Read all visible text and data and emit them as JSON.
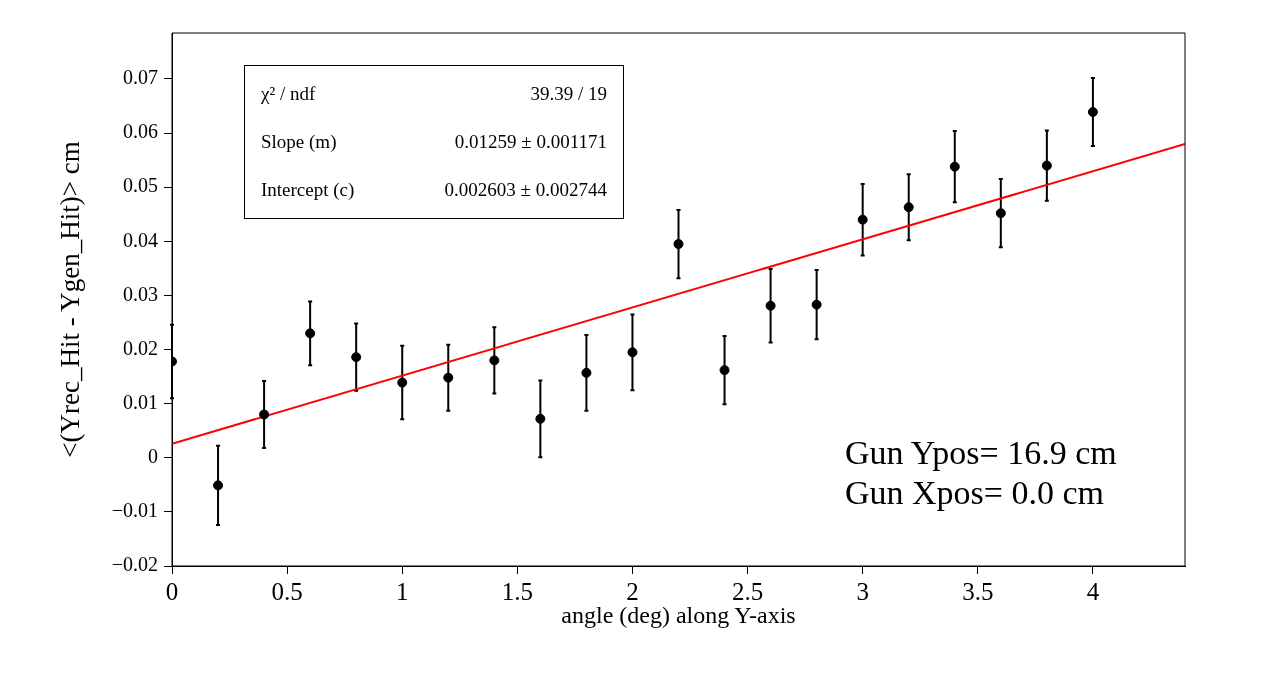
{
  "chart_data": {
    "type": "scatter",
    "xlabel": "angle (deg) along Y-axis",
    "ylabel": "<(Yrec_Hit - Ygen_Hit)> cm",
    "xlim": [
      0,
      4.4
    ],
    "xticks": [
      0,
      0.5,
      1,
      1.5,
      2,
      2.5,
      3,
      3.5,
      4
    ],
    "ylim": [
      -0.02,
      0.0785
    ],
    "yticks": [
      {
        "value": -0.02,
        "label": "−0.02"
      },
      {
        "value": -0.01,
        "label": "−0.01"
      },
      0,
      0.01,
      0.02,
      0.03,
      0.04,
      0.05,
      0.06,
      0.07
    ],
    "series": [
      {
        "marker": "circle",
        "color": "#000000",
        "x": [
          0,
          0.2,
          0.4,
          0.6,
          0.8,
          1.0,
          1.2,
          1.4,
          1.6,
          1.8,
          2.0,
          2.2,
          2.4,
          2.6,
          2.8,
          3.0,
          3.2,
          3.4,
          3.6,
          3.8,
          4.0
        ],
        "values": [
          0.0178,
          -0.0051,
          0.008,
          0.023,
          0.0186,
          0.0139,
          0.0148,
          0.018,
          0.0072,
          0.0157,
          0.0195,
          0.0395,
          0.0162,
          0.0281,
          0.0283,
          0.044,
          0.0463,
          0.0538,
          0.0452,
          0.054,
          0.0639
        ],
        "errors": [
          0.0068,
          0.0073,
          0.0062,
          0.0059,
          0.0062,
          0.0068,
          0.0061,
          0.0061,
          0.0071,
          0.007,
          0.007,
          0.0063,
          0.0063,
          0.0068,
          0.0064,
          0.0066,
          0.0061,
          0.0066,
          0.0063,
          0.0065,
          0.0063
        ]
      },
      {
        "type": "line",
        "color": "#ff0000",
        "x": [
          0,
          4.4
        ],
        "values": [
          0.0026,
          0.058
        ]
      }
    ],
    "annotations": [
      "χ² / ndf",
      "39.39 / 19",
      "Slope (m)",
      "0.01259 ± 0.001171",
      "Intercept (c)",
      "0.002603 ± 0.002744",
      "Gun Ypos= 16.9 cm",
      "Gun Xpos= 0.0 cm"
    ]
  }
}
